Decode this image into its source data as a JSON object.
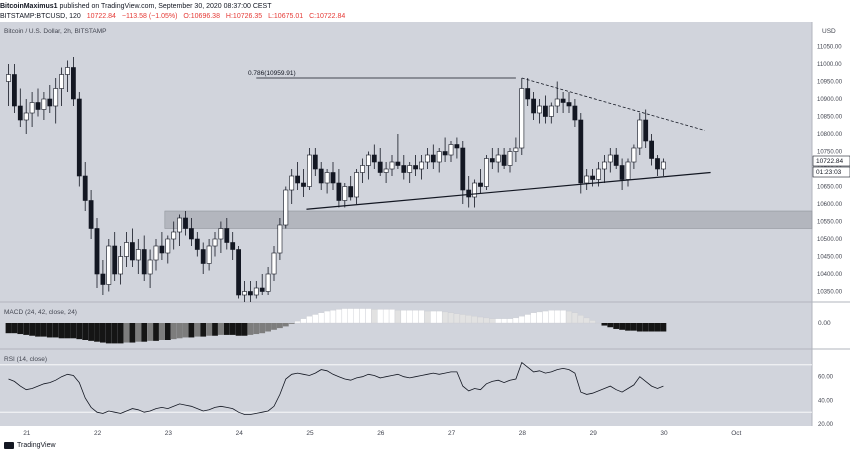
{
  "header": {
    "author": "BitcoinMaximus1",
    "published_text": "published on TradingView.com, September 30, 2020 08:37:00 CEST",
    "symbol": "BITSTAMP:BTCUSD, 120",
    "last": "10722.84",
    "change": "−113.58 (−1.05%)",
    "open": "O:10696.38",
    "high": "H:10726.35",
    "low": "L:10675.01",
    "close": "C:10722.84"
  },
  "footer": {
    "brand": "TradingView"
  },
  "chart_data": {
    "type": "candlestick",
    "title": "Bitcoin / U.S. Dollar, 2h, BITSTAMP",
    "ylim": [
      10320,
      11080
    ],
    "y_ticks": [
      11050,
      11000,
      10950,
      10900,
      10850,
      10800,
      10750,
      10700,
      10650,
      10600,
      10550,
      10500,
      10450,
      10400,
      10350
    ],
    "y_tick_labels": [
      "11050.00",
      "11000.00",
      "10950.00",
      "10900.00",
      "10850.00",
      "10800.00",
      "10750.00",
      "10700.00",
      "10650.00",
      "10600.00",
      "10550.00",
      "10500.00",
      "10450.00",
      "10400.00",
      "10350.00"
    ],
    "y_unit": "USD",
    "last_price_label": "10722.84",
    "countdown_label": "01:23:03",
    "x_ticks": [
      "21",
      "22",
      "23",
      "24",
      "25",
      "26",
      "27",
      "28",
      "29",
      "30",
      "Oct"
    ],
    "x_tick_positions": [
      3.0,
      15.0,
      27.0,
      39.0,
      51.0,
      63.0,
      75.0,
      87.0,
      99.0,
      111.0,
      123.0
    ],
    "candles": [
      {
        "t": 0,
        "o": 10950,
        "h": 11000,
        "l": 10880,
        "c": 10970
      },
      {
        "t": 1,
        "o": 10970,
        "h": 11000,
        "l": 10860,
        "c": 10880
      },
      {
        "t": 2,
        "o": 10880,
        "h": 10930,
        "l": 10820,
        "c": 10840
      },
      {
        "t": 3,
        "o": 10840,
        "h": 10900,
        "l": 10800,
        "c": 10860
      },
      {
        "t": 4,
        "o": 10860,
        "h": 10920,
        "l": 10820,
        "c": 10890
      },
      {
        "t": 5,
        "o": 10890,
        "h": 10930,
        "l": 10850,
        "c": 10870
      },
      {
        "t": 6,
        "o": 10870,
        "h": 10920,
        "l": 10840,
        "c": 10900
      },
      {
        "t": 7,
        "o": 10900,
        "h": 10940,
        "l": 10860,
        "c": 10880
      },
      {
        "t": 8,
        "o": 10880,
        "h": 10960,
        "l": 10830,
        "c": 10930
      },
      {
        "t": 9,
        "o": 10930,
        "h": 10990,
        "l": 10880,
        "c": 10970
      },
      {
        "t": 10,
        "o": 10970,
        "h": 11010,
        "l": 10920,
        "c": 10990
      },
      {
        "t": 11,
        "o": 10990,
        "h": 11020,
        "l": 10880,
        "c": 10900
      },
      {
        "t": 12,
        "o": 10900,
        "h": 10920,
        "l": 10650,
        "c": 10680
      },
      {
        "t": 13,
        "o": 10680,
        "h": 10720,
        "l": 10580,
        "c": 10610
      },
      {
        "t": 14,
        "o": 10610,
        "h": 10640,
        "l": 10500,
        "c": 10530
      },
      {
        "t": 15,
        "o": 10530,
        "h": 10560,
        "l": 10360,
        "c": 10400
      },
      {
        "t": 16,
        "o": 10400,
        "h": 10440,
        "l": 10340,
        "c": 10370
      },
      {
        "t": 17,
        "o": 10370,
        "h": 10500,
        "l": 10350,
        "c": 10480
      },
      {
        "t": 18,
        "o": 10480,
        "h": 10520,
        "l": 10380,
        "c": 10400
      },
      {
        "t": 19,
        "o": 10400,
        "h": 10480,
        "l": 10370,
        "c": 10450
      },
      {
        "t": 20,
        "o": 10450,
        "h": 10520,
        "l": 10420,
        "c": 10490
      },
      {
        "t": 21,
        "o": 10490,
        "h": 10530,
        "l": 10420,
        "c": 10440
      },
      {
        "t": 22,
        "o": 10440,
        "h": 10500,
        "l": 10400,
        "c": 10470
      },
      {
        "t": 23,
        "o": 10470,
        "h": 10510,
        "l": 10380,
        "c": 10400
      },
      {
        "t": 24,
        "o": 10400,
        "h": 10470,
        "l": 10360,
        "c": 10440
      },
      {
        "t": 25,
        "o": 10440,
        "h": 10500,
        "l": 10410,
        "c": 10480
      },
      {
        "t": 26,
        "o": 10480,
        "h": 10520,
        "l": 10440,
        "c": 10460
      },
      {
        "t": 27,
        "o": 10460,
        "h": 10510,
        "l": 10430,
        "c": 10500
      },
      {
        "t": 28,
        "o": 10500,
        "h": 10550,
        "l": 10470,
        "c": 10520
      },
      {
        "t": 29,
        "o": 10520,
        "h": 10570,
        "l": 10480,
        "c": 10560
      },
      {
        "t": 30,
        "o": 10560,
        "h": 10580,
        "l": 10510,
        "c": 10530
      },
      {
        "t": 31,
        "o": 10530,
        "h": 10560,
        "l": 10480,
        "c": 10500
      },
      {
        "t": 32,
        "o": 10500,
        "h": 10520,
        "l": 10450,
        "c": 10470
      },
      {
        "t": 33,
        "o": 10470,
        "h": 10490,
        "l": 10400,
        "c": 10430
      },
      {
        "t": 34,
        "o": 10430,
        "h": 10500,
        "l": 10410,
        "c": 10480
      },
      {
        "t": 35,
        "o": 10480,
        "h": 10520,
        "l": 10450,
        "c": 10500
      },
      {
        "t": 36,
        "o": 10500,
        "h": 10550,
        "l": 10460,
        "c": 10530
      },
      {
        "t": 37,
        "o": 10530,
        "h": 10560,
        "l": 10470,
        "c": 10490
      },
      {
        "t": 38,
        "o": 10490,
        "h": 10520,
        "l": 10440,
        "c": 10470
      },
      {
        "t": 39,
        "o": 10470,
        "h": 10480,
        "l": 10330,
        "c": 10340
      },
      {
        "t": 40,
        "o": 10340,
        "h": 10380,
        "l": 10320,
        "c": 10350
      },
      {
        "t": 41,
        "o": 10350,
        "h": 10380,
        "l": 10320,
        "c": 10340
      },
      {
        "t": 42,
        "o": 10340,
        "h": 10380,
        "l": 10330,
        "c": 10360
      },
      {
        "t": 43,
        "o": 10360,
        "h": 10400,
        "l": 10340,
        "c": 10350
      },
      {
        "t": 44,
        "o": 10350,
        "h": 10420,
        "l": 10340,
        "c": 10400
      },
      {
        "t": 45,
        "o": 10400,
        "h": 10480,
        "l": 10380,
        "c": 10460
      },
      {
        "t": 46,
        "o": 10460,
        "h": 10560,
        "l": 10440,
        "c": 10540
      },
      {
        "t": 47,
        "o": 10540,
        "h": 10650,
        "l": 10530,
        "c": 10640
      },
      {
        "t": 48,
        "o": 10640,
        "h": 10700,
        "l": 10600,
        "c": 10680
      },
      {
        "t": 49,
        "o": 10680,
        "h": 10720,
        "l": 10640,
        "c": 10660
      },
      {
        "t": 50,
        "o": 10660,
        "h": 10700,
        "l": 10620,
        "c": 10650
      },
      {
        "t": 51,
        "o": 10650,
        "h": 10760,
        "l": 10640,
        "c": 10740
      },
      {
        "t": 52,
        "o": 10740,
        "h": 10760,
        "l": 10680,
        "c": 10700
      },
      {
        "t": 53,
        "o": 10700,
        "h": 10720,
        "l": 10640,
        "c": 10660
      },
      {
        "t": 54,
        "o": 10660,
        "h": 10700,
        "l": 10630,
        "c": 10690
      },
      {
        "t": 55,
        "o": 10690,
        "h": 10720,
        "l": 10640,
        "c": 10660
      },
      {
        "t": 56,
        "o": 10660,
        "h": 10700,
        "l": 10590,
        "c": 10610
      },
      {
        "t": 57,
        "o": 10610,
        "h": 10660,
        "l": 10590,
        "c": 10650
      },
      {
        "t": 58,
        "o": 10650,
        "h": 10680,
        "l": 10610,
        "c": 10620
      },
      {
        "t": 59,
        "o": 10620,
        "h": 10700,
        "l": 10600,
        "c": 10690
      },
      {
        "t": 60,
        "o": 10690,
        "h": 10730,
        "l": 10660,
        "c": 10710
      },
      {
        "t": 61,
        "o": 10710,
        "h": 10750,
        "l": 10670,
        "c": 10740
      },
      {
        "t": 62,
        "o": 10740,
        "h": 10770,
        "l": 10700,
        "c": 10720
      },
      {
        "t": 63,
        "o": 10720,
        "h": 10760,
        "l": 10680,
        "c": 10690
      },
      {
        "t": 64,
        "o": 10690,
        "h": 10720,
        "l": 10660,
        "c": 10700
      },
      {
        "t": 65,
        "o": 10700,
        "h": 10740,
        "l": 10680,
        "c": 10720
      },
      {
        "t": 66,
        "o": 10720,
        "h": 10800,
        "l": 10700,
        "c": 10710
      },
      {
        "t": 67,
        "o": 10710,
        "h": 10740,
        "l": 10670,
        "c": 10690
      },
      {
        "t": 68,
        "o": 10690,
        "h": 10720,
        "l": 10660,
        "c": 10710
      },
      {
        "t": 69,
        "o": 10710,
        "h": 10740,
        "l": 10680,
        "c": 10700
      },
      {
        "t": 70,
        "o": 10700,
        "h": 10740,
        "l": 10670,
        "c": 10720
      },
      {
        "t": 71,
        "o": 10720,
        "h": 10760,
        "l": 10700,
        "c": 10740
      },
      {
        "t": 72,
        "o": 10740,
        "h": 10770,
        "l": 10700,
        "c": 10720
      },
      {
        "t": 73,
        "o": 10720,
        "h": 10760,
        "l": 10690,
        "c": 10750
      },
      {
        "t": 74,
        "o": 10750,
        "h": 10790,
        "l": 10720,
        "c": 10740
      },
      {
        "t": 75,
        "o": 10740,
        "h": 10780,
        "l": 10720,
        "c": 10770
      },
      {
        "t": 76,
        "o": 10770,
        "h": 10790,
        "l": 10730,
        "c": 10760
      },
      {
        "t": 77,
        "o": 10760,
        "h": 10780,
        "l": 10600,
        "c": 10640
      },
      {
        "t": 78,
        "o": 10640,
        "h": 10680,
        "l": 10590,
        "c": 10620
      },
      {
        "t": 79,
        "o": 10620,
        "h": 10670,
        "l": 10590,
        "c": 10660
      },
      {
        "t": 80,
        "o": 10660,
        "h": 10700,
        "l": 10630,
        "c": 10650
      },
      {
        "t": 81,
        "o": 10650,
        "h": 10740,
        "l": 10640,
        "c": 10730
      },
      {
        "t": 82,
        "o": 10730,
        "h": 10760,
        "l": 10700,
        "c": 10720
      },
      {
        "t": 83,
        "o": 10720,
        "h": 10760,
        "l": 10690,
        "c": 10740
      },
      {
        "t": 84,
        "o": 10740,
        "h": 10760,
        "l": 10700,
        "c": 10710
      },
      {
        "t": 85,
        "o": 10710,
        "h": 10760,
        "l": 10690,
        "c": 10750
      },
      {
        "t": 86,
        "o": 10750,
        "h": 10790,
        "l": 10720,
        "c": 10760
      },
      {
        "t": 87,
        "o": 10760,
        "h": 10960,
        "l": 10740,
        "c": 10930
      },
      {
        "t": 88,
        "o": 10930,
        "h": 10960,
        "l": 10880,
        "c": 10900
      },
      {
        "t": 89,
        "o": 10900,
        "h": 10920,
        "l": 10840,
        "c": 10860
      },
      {
        "t": 90,
        "o": 10860,
        "h": 10900,
        "l": 10830,
        "c": 10880
      },
      {
        "t": 91,
        "o": 10880,
        "h": 10910,
        "l": 10830,
        "c": 10850
      },
      {
        "t": 92,
        "o": 10850,
        "h": 10890,
        "l": 10830,
        "c": 10880
      },
      {
        "t": 93,
        "o": 10880,
        "h": 10950,
        "l": 10860,
        "c": 10900
      },
      {
        "t": 94,
        "o": 10900,
        "h": 10920,
        "l": 10860,
        "c": 10890
      },
      {
        "t": 95,
        "o": 10890,
        "h": 10920,
        "l": 10860,
        "c": 10880
      },
      {
        "t": 96,
        "o": 10880,
        "h": 10900,
        "l": 10820,
        "c": 10840
      },
      {
        "t": 97,
        "o": 10840,
        "h": 10860,
        "l": 10630,
        "c": 10660
      },
      {
        "t": 98,
        "o": 10660,
        "h": 10700,
        "l": 10640,
        "c": 10680
      },
      {
        "t": 99,
        "o": 10680,
        "h": 10700,
        "l": 10650,
        "c": 10670
      },
      {
        "t": 100,
        "o": 10670,
        "h": 10720,
        "l": 10650,
        "c": 10700
      },
      {
        "t": 101,
        "o": 10700,
        "h": 10740,
        "l": 10660,
        "c": 10720
      },
      {
        "t": 102,
        "o": 10720,
        "h": 10760,
        "l": 10690,
        "c": 10740
      },
      {
        "t": 103,
        "o": 10740,
        "h": 10760,
        "l": 10700,
        "c": 10710
      },
      {
        "t": 104,
        "o": 10710,
        "h": 10730,
        "l": 10640,
        "c": 10670
      },
      {
        "t": 105,
        "o": 10670,
        "h": 10730,
        "l": 10650,
        "c": 10720
      },
      {
        "t": 106,
        "o": 10720,
        "h": 10770,
        "l": 10700,
        "c": 10760
      },
      {
        "t": 107,
        "o": 10760,
        "h": 10860,
        "l": 10740,
        "c": 10840
      },
      {
        "t": 108,
        "o": 10840,
        "h": 10870,
        "l": 10760,
        "c": 10780
      },
      {
        "t": 109,
        "o": 10780,
        "h": 10800,
        "l": 10710,
        "c": 10730
      },
      {
        "t": 110,
        "o": 10730,
        "h": 10740,
        "l": 10680,
        "c": 10700
      },
      {
        "t": 111,
        "o": 10700,
        "h": 10730,
        "l": 10680,
        "c": 10720
      }
    ],
    "annotations": {
      "fib_label": "0.786(10959.91)",
      "fib_level": 10959.91,
      "fib_line": {
        "x0": 42,
        "x1": 86
      },
      "support_zone": [
        10530,
        10580
      ],
      "support_trendline": {
        "x0": 50.5,
        "y0": 10585,
        "x1": 119,
        "y1": 10690
      },
      "resistance_trendline": {
        "x0": 87,
        "y0": 10960,
        "x1": 118,
        "y1": 10810
      }
    },
    "macd": {
      "label": "MACD (24, 42, close, 24)",
      "tick_label": "0.00",
      "histogram": [
        -12,
        -12,
        -13,
        -14,
        -15,
        -16,
        -16,
        -17,
        -17,
        -18,
        -18,
        -18,
        -19,
        -20,
        -21,
        -22,
        -23,
        -24,
        -24,
        -24,
        -23,
        -23,
        -22,
        -22,
        -21,
        -21,
        -20,
        -20,
        -19,
        -18,
        -17,
        -17,
        -16,
        -16,
        -15,
        -15,
        -14,
        -14,
        -14,
        -15,
        -15,
        -14,
        -13,
        -12,
        -10,
        -8,
        -6,
        -4,
        -1,
        2,
        5,
        8,
        10,
        12,
        14,
        15,
        16,
        17,
        17,
        17,
        17,
        17,
        16,
        16,
        16,
        16,
        15,
        15,
        15,
        15,
        15,
        14,
        14,
        14,
        13,
        12,
        11,
        10,
        9,
        8,
        7,
        6,
        5,
        5,
        5,
        5,
        6,
        8,
        10,
        12,
        13,
        14,
        15,
        15,
        15,
        14,
        12,
        9,
        6,
        3,
        0,
        -3,
        -5,
        -7,
        -8,
        -9,
        -9,
        -10,
        -10,
        -10,
        -10,
        -10
      ],
      "zero_dark": "#151515",
      "colors": {
        "neg_deep": "#151515",
        "neg_rising": "#7d7d7d",
        "pos_high": "#ffffff",
        "pos_falling": "#e2e2e2"
      }
    },
    "rsi": {
      "label": "RSI (14, close)",
      "ylim": [
        20,
        80
      ],
      "tick_labels": [
        "60.00",
        "40.00",
        "20.00"
      ],
      "ticks": [
        60,
        40,
        20
      ],
      "bands": [
        70,
        30
      ],
      "values": [
        58,
        56,
        52,
        49,
        50,
        52,
        54,
        55,
        57,
        60,
        62,
        61,
        55,
        42,
        34,
        30,
        29,
        31,
        30,
        29,
        31,
        33,
        32,
        30,
        31,
        33,
        34,
        33,
        35,
        37,
        36,
        35,
        33,
        31,
        32,
        34,
        35,
        34,
        33,
        30,
        28,
        28,
        29,
        30,
        31,
        35,
        45,
        58,
        62,
        63,
        62,
        61,
        63,
        66,
        65,
        62,
        60,
        58,
        57,
        59,
        60,
        62,
        61,
        59,
        60,
        61,
        62,
        60,
        59,
        60,
        61,
        62,
        63,
        62,
        63,
        64,
        64,
        52,
        48,
        50,
        49,
        54,
        56,
        57,
        55,
        57,
        58,
        72,
        68,
        64,
        65,
        63,
        64,
        66,
        67,
        66,
        63,
        47,
        45,
        46,
        48,
        50,
        52,
        49,
        47,
        50,
        53,
        60,
        56,
        52,
        50,
        52
      ]
    }
  }
}
